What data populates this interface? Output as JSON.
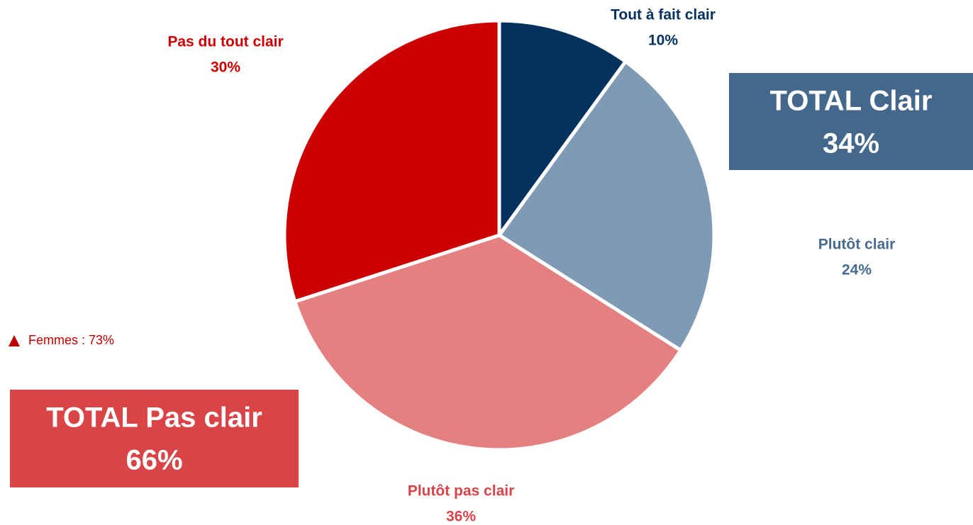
{
  "chart_data": {
    "type": "pie",
    "categories": [
      "Tout à fait clair",
      "Plutôt clair",
      "Plutôt pas clair",
      "Pas du tout clair"
    ],
    "values": [
      10,
      24,
      36,
      30
    ],
    "value_labels": [
      "10%",
      "24%",
      "36%",
      "30%"
    ],
    "colors": [
      "#03325f",
      "#7f9ab4",
      "#e58080",
      "#cc0000"
    ],
    "annotations": [
      {
        "text": "TOTAL Clair",
        "value": 34,
        "label": "34%",
        "color": "#44678c"
      },
      {
        "text": "TOTAL Pas clair",
        "value": 66,
        "label": "66%",
        "color": "#d94447"
      },
      {
        "text": "Femmes : 73%",
        "value": 73,
        "color": "#c00000"
      }
    ]
  }
}
